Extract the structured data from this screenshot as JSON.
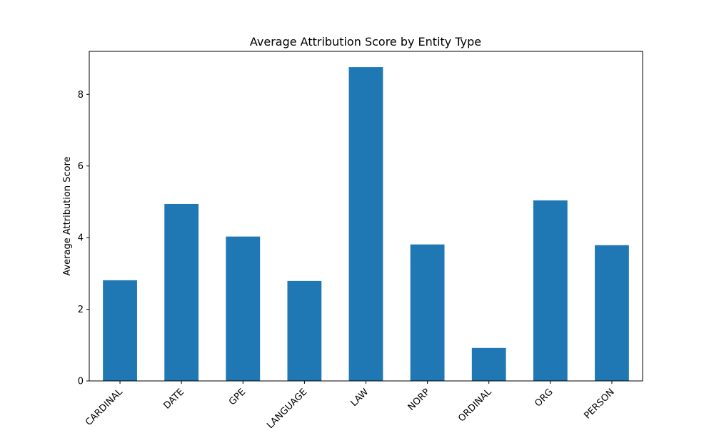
{
  "chart_data": {
    "type": "bar",
    "title": "Average Attribution Score by Entity Type",
    "xlabel": "",
    "ylabel": "Average Attribution Score",
    "categories": [
      "CARDINAL",
      "DATE",
      "GPE",
      "LANGUAGE",
      "LAW",
      "NORP",
      "ORDINAL",
      "ORG",
      "PERSON"
    ],
    "values": [
      2.81,
      4.94,
      4.03,
      2.79,
      8.76,
      3.81,
      0.92,
      5.04,
      3.79
    ],
    "ylim": [
      0,
      9.2
    ],
    "yticks": [
      0,
      2,
      4,
      6,
      8
    ],
    "grid": false,
    "legend": "none",
    "bar_color": "#1f77b4"
  }
}
